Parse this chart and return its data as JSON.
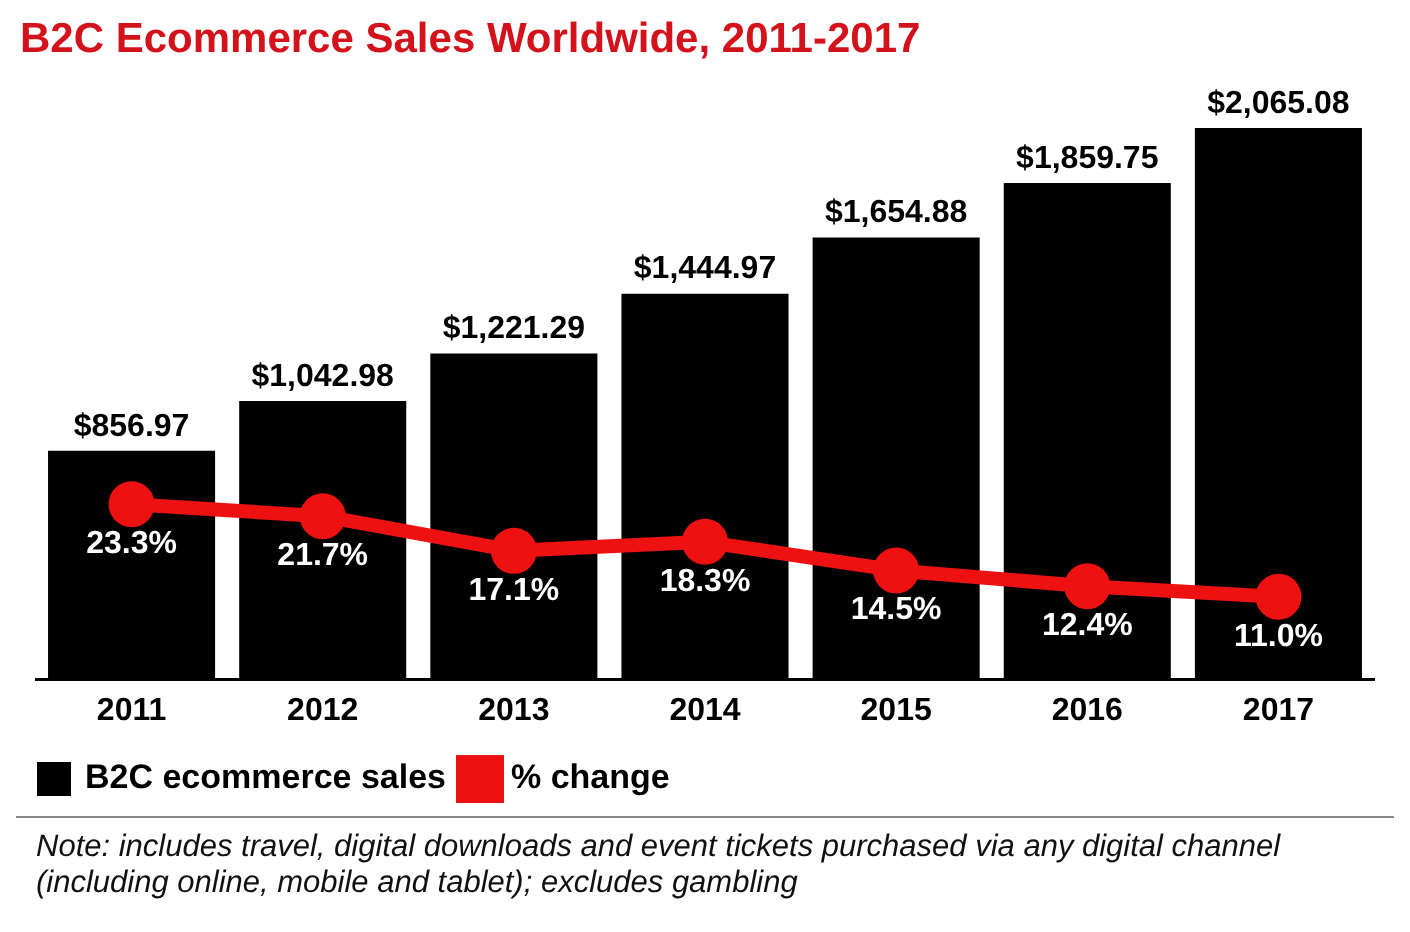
{
  "chart_data": {
    "type": "bar",
    "title": "B2C Ecommerce Sales Worldwide, 2011-2017",
    "categories": [
      "2011",
      "2012",
      "2013",
      "2014",
      "2015",
      "2016",
      "2017"
    ],
    "series": [
      {
        "name": "B2C ecommerce sales",
        "color": "#000000",
        "values": [
          856.97,
          1042.98,
          1221.29,
          1444.97,
          1654.88,
          1859.75,
          2065.08
        ],
        "value_labels": [
          "$856.97",
          "$1,042.98",
          "$1,221.29",
          "$1,444.97",
          "$1,654.88",
          "$1,859.75",
          "$2,065.08"
        ]
      },
      {
        "name": "% change",
        "type": "line",
        "axis": "y2",
        "color": "#ee1111",
        "values": [
          23.3,
          21.7,
          17.1,
          18.3,
          14.5,
          12.4,
          11.0
        ],
        "value_labels": [
          "23.3%",
          "21.7%",
          "17.1%",
          "18.3%",
          "14.5%",
          "12.4%",
          "11.0%"
        ]
      }
    ],
    "tick_labels": "x",
    "grid": false,
    "legend": "bottom left",
    "marker": "circle",
    "annotations": [
      "Note: includes travel, digital downloads and event tickets purchased via any digital channel (including online, mobile and tablet); excludes gambling"
    ]
  }
}
